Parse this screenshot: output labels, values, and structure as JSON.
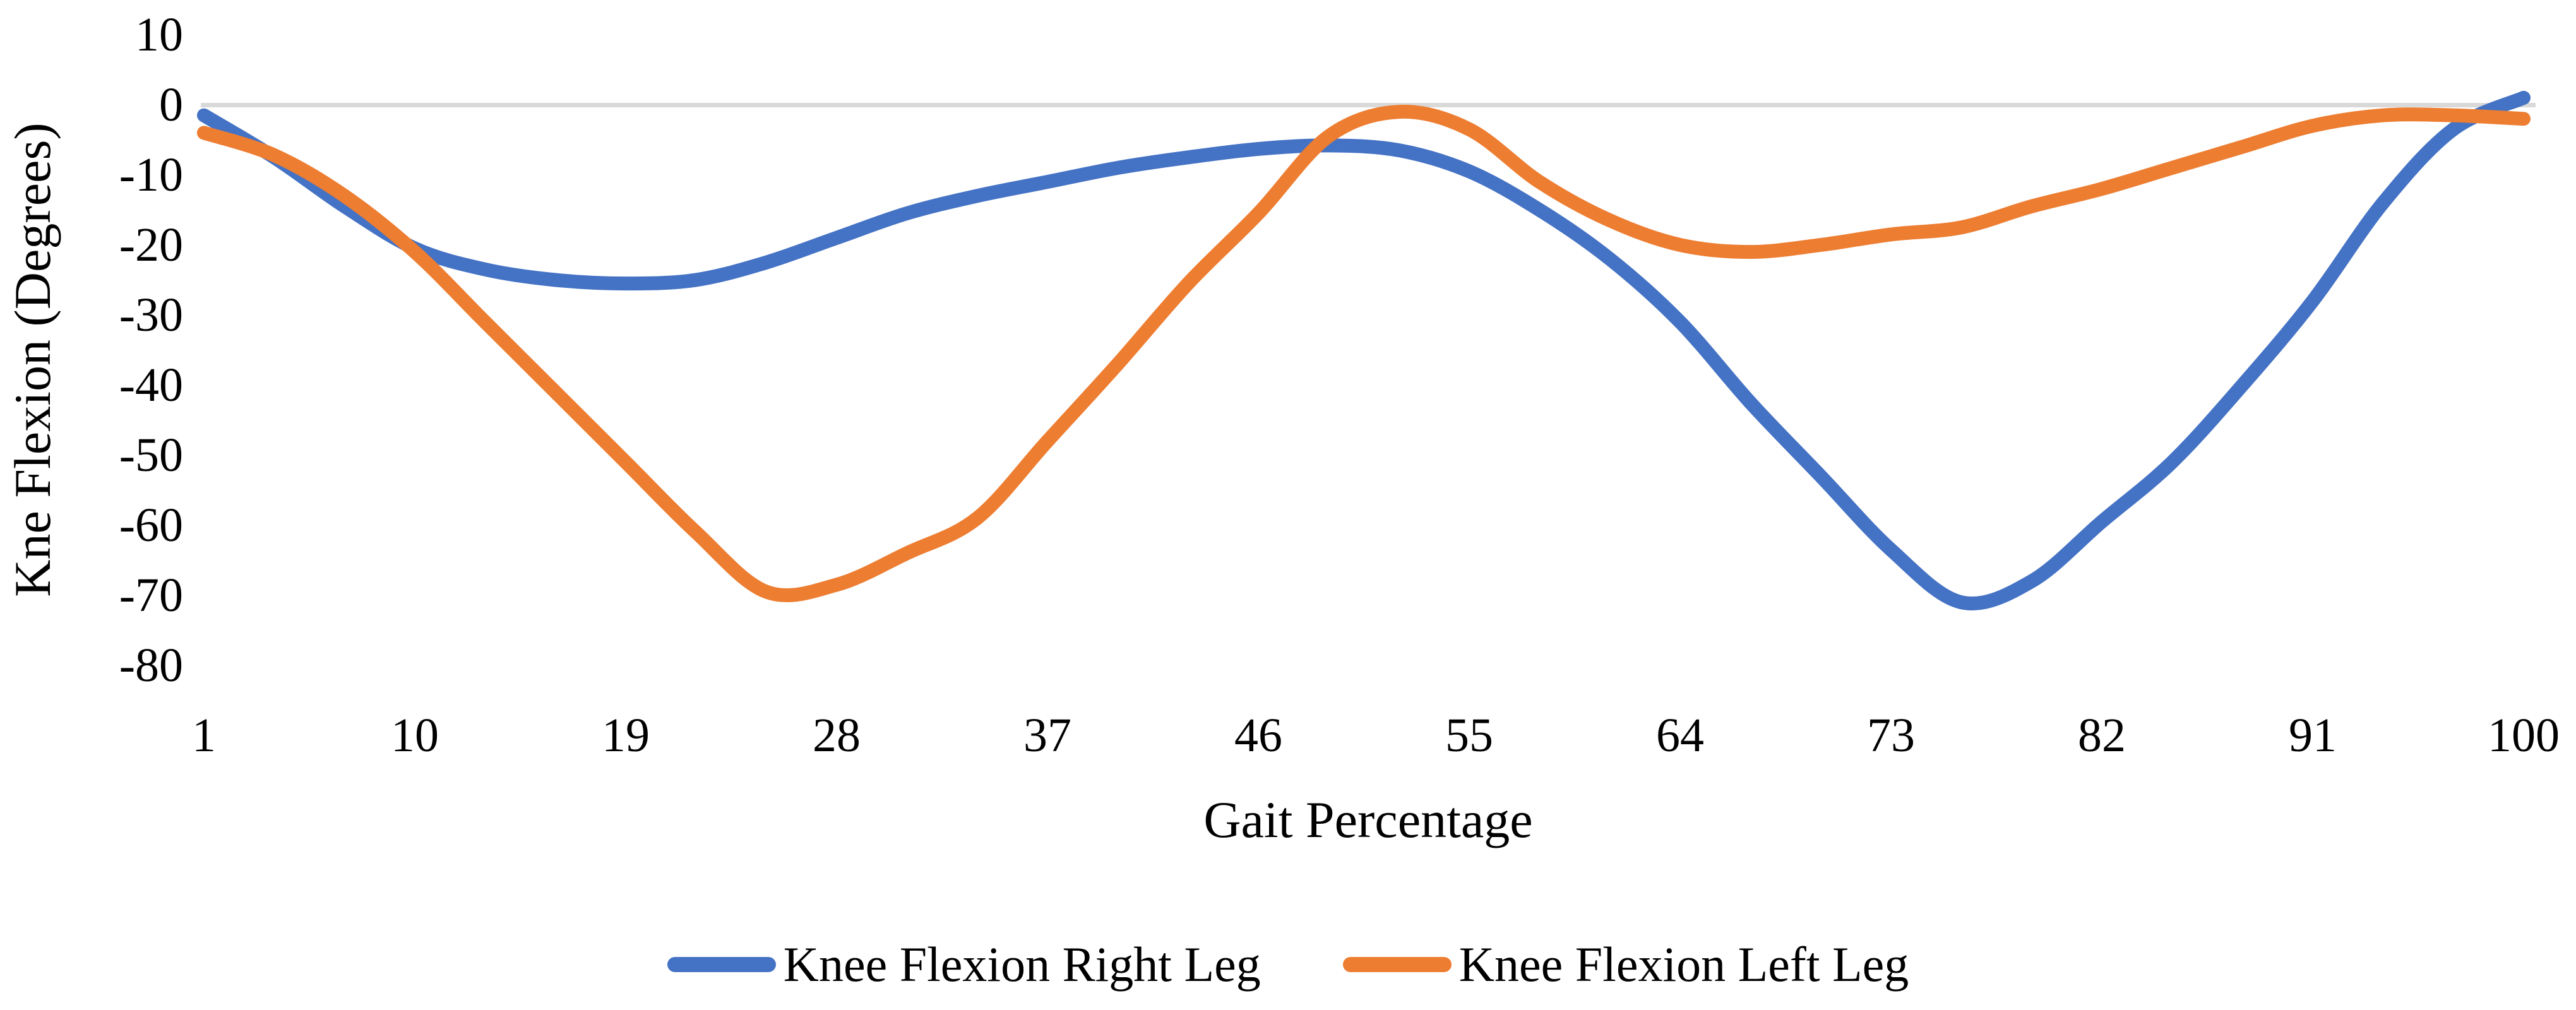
{
  "chart_data": {
    "type": "line",
    "title": "",
    "xlabel": "Gait Percentage",
    "ylabel": "Kne Flexion (Degrees)",
    "xlim": [
      1,
      100
    ],
    "ylim": [
      -80,
      10
    ],
    "grid": "zero-line-only",
    "legend_position": "bottom-center",
    "x_tick_labels": [
      "1",
      "10",
      "19",
      "28",
      "37",
      "46",
      "55",
      "64",
      "73",
      "82",
      "91",
      "100"
    ],
    "y_tick_labels": [
      "10",
      "0",
      "-10",
      "-20",
      "-30",
      "-40",
      "-50",
      "-60",
      "-70",
      "-80"
    ],
    "x": [
      1,
      4,
      7,
      10,
      13,
      16,
      19,
      22,
      25,
      28,
      31,
      34,
      37,
      40,
      43,
      46,
      49,
      52,
      55,
      58,
      61,
      64,
      67,
      70,
      73,
      76,
      79,
      82,
      85,
      88,
      91,
      94,
      97,
      100
    ],
    "series": [
      {
        "name": "Knee Flexion Right Leg",
        "color": "#4472C4",
        "values": [
          -1.5,
          -7.5,
          -14.5,
          -20.5,
          -23.5,
          -25,
          -25.5,
          -25,
          -22.5,
          -19,
          -15.5,
          -13,
          -11,
          -9,
          -7.5,
          -6.3,
          -5.8,
          -6.5,
          -9.5,
          -15,
          -22,
          -31,
          -42.5,
          -53,
          -63.5,
          -71,
          -68,
          -59.5,
          -51,
          -40,
          -28,
          -14,
          -3.5,
          1
        ]
      },
      {
        "name": "Knee Flexion Left Leg",
        "color": "#ED7D31",
        "values": [
          -4,
          -7.2,
          -13,
          -21,
          -31,
          -41,
          -51,
          -61,
          -69.5,
          -68.5,
          -64,
          -59,
          -48,
          -37,
          -25.5,
          -15.5,
          -4.5,
          -1,
          -3.5,
          -11,
          -16.5,
          -20,
          -21,
          -20,
          -18.5,
          -17.5,
          -14.5,
          -12,
          -9,
          -6,
          -3,
          -1.5,
          -1.5,
          -2
        ]
      }
    ]
  },
  "colors": {
    "background": "#FFFFFF",
    "text": "#000000",
    "zero_gridline": "#D9D9D9",
    "series_right_leg": "#4472C4",
    "series_left_leg": "#ED7D31"
  }
}
